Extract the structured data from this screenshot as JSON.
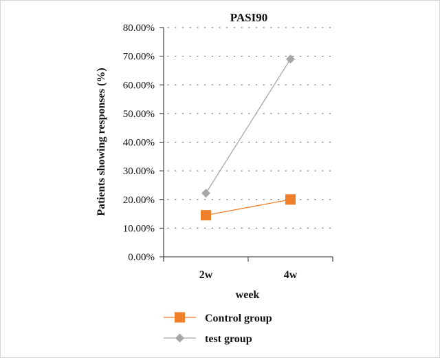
{
  "chart_data": {
    "type": "line",
    "title": "PASI90",
    "xlabel": "week",
    "ylabel": "Patients showing responses (%)",
    "categories": [
      "2w",
      "4w"
    ],
    "ylim": [
      0,
      80
    ],
    "y_ticks": [
      0,
      10,
      20,
      30,
      40,
      50,
      60,
      70,
      80
    ],
    "y_tick_labels": [
      "0.00%",
      "10.00%",
      "20.00%",
      "30.00%",
      "40.00%",
      "50.00%",
      "60.00%",
      "70.00%",
      "80.00%"
    ],
    "grid": "dotted horizontal",
    "legend_position": "bottom",
    "series": [
      {
        "name": "Control group",
        "values": [
          14.5,
          20.0
        ],
        "color": "#f07f2a",
        "marker": "square"
      },
      {
        "name": "test group",
        "values": [
          22.2,
          69.0
        ],
        "color": "#a6a6a6",
        "marker": "diamond"
      }
    ]
  }
}
